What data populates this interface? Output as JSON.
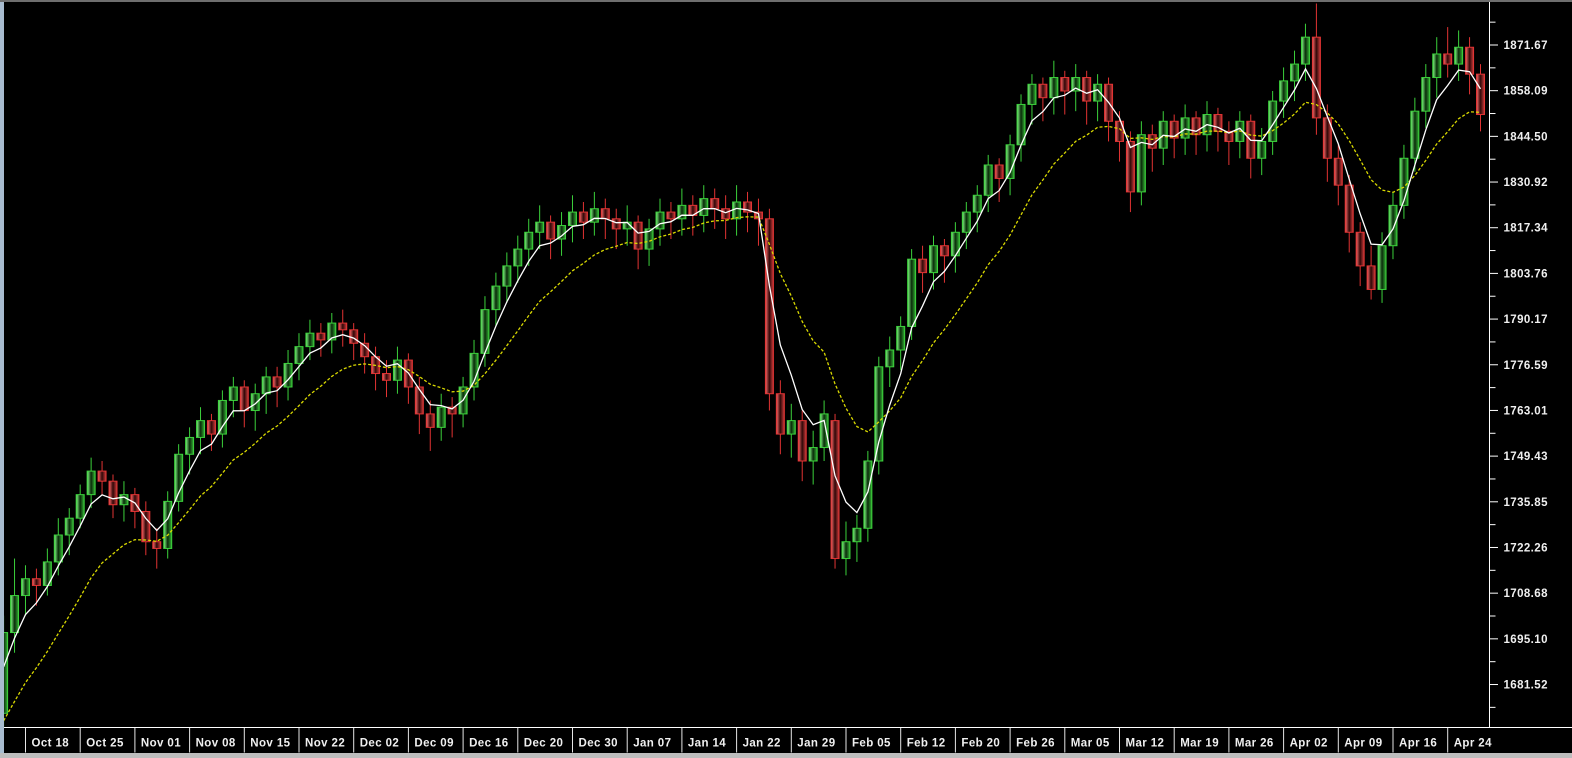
{
  "window": {
    "background": "#000000",
    "top_border_color": "#6e6e6e",
    "left_border_color": "#a8bccf",
    "bottom_border_color": "#bdbdbd",
    "axis_line_color": "#ffffff",
    "axis_text_color": "#f0f0f0"
  },
  "chart_data": {
    "type": "candlestick",
    "title": "",
    "description": "Daily OHLC candlestick price chart (black background trading terminal) with a fast white moving-average line and a slow yellow moving-average line; price scale on the right, weekly date scale on the bottom.",
    "legend_position": "none",
    "grid": false,
    "x_axis": {
      "tick_labels": [
        "Oct 18",
        "Oct 25",
        "Nov 01",
        "Nov 08",
        "Nov 15",
        "Nov 22",
        "Dec 02",
        "Dec 09",
        "Dec 16",
        "Dec 20",
        "Dec 30",
        "Jan 07",
        "Jan 14",
        "Jan 22",
        "Jan 29",
        "Feb 05",
        "Feb 12",
        "Feb 20",
        "Feb 26",
        "Mar 05",
        "Mar 12",
        "Mar 19",
        "Mar 26",
        "Apr 02",
        "Apr 09",
        "Apr 16",
        "Apr 24"
      ],
      "candles_per_tick_interval": 5
    },
    "y_axis": {
      "side": "right",
      "tick_labels": [
        "1871.67",
        "1858.09",
        "1844.50",
        "1830.92",
        "1817.34",
        "1803.76",
        "1790.17",
        "1776.59",
        "1763.01",
        "1749.43",
        "1735.85",
        "1722.26",
        "1708.68",
        "1695.10",
        "1681.52"
      ],
      "tick_values": [
        1871.67,
        1858.09,
        1844.5,
        1830.92,
        1817.34,
        1803.76,
        1790.17,
        1776.59,
        1763.01,
        1749.43,
        1735.85,
        1722.26,
        1708.68,
        1695.1,
        1681.52
      ],
      "minor_ticks_between": 1,
      "range_shown": [
        1669,
        1884
      ]
    },
    "series": [
      {
        "name": "price-candles",
        "type": "candlestick",
        "up": {
          "stroke": "#3bd13b",
          "gradient": [
            "#86ff86",
            "#0a2a0a",
            "#35b035"
          ]
        },
        "down": {
          "stroke": "#e23333",
          "gradient": [
            "#ff6a6a",
            "#2f0808",
            "#c93b3b"
          ]
        },
        "ohlc": [
          [
            1673,
            1702,
            1669,
            1697
          ],
          [
            1697,
            1719,
            1691,
            1708
          ],
          [
            1708,
            1717,
            1702,
            1713
          ],
          [
            1713,
            1716,
            1705,
            1711
          ],
          [
            1711,
            1722,
            1708,
            1718
          ],
          [
            1718,
            1731,
            1714,
            1726
          ],
          [
            1726,
            1734,
            1720,
            1731
          ],
          [
            1731,
            1741,
            1728,
            1738
          ],
          [
            1738,
            1749,
            1734,
            1745
          ],
          [
            1745,
            1748,
            1738,
            1742
          ],
          [
            1742,
            1744,
            1731,
            1735
          ],
          [
            1735,
            1742,
            1730,
            1738
          ],
          [
            1738,
            1740,
            1728,
            1733
          ],
          [
            1733,
            1736,
            1720,
            1724
          ],
          [
            1724,
            1728,
            1716,
            1722
          ],
          [
            1722,
            1739,
            1719,
            1736
          ],
          [
            1736,
            1753,
            1733,
            1750
          ],
          [
            1750,
            1758,
            1744,
            1755
          ],
          [
            1755,
            1764,
            1750,
            1760
          ],
          [
            1760,
            1762,
            1751,
            1756
          ],
          [
            1756,
            1769,
            1752,
            1766
          ],
          [
            1766,
            1773,
            1761,
            1770
          ],
          [
            1770,
            1772,
            1758,
            1763
          ],
          [
            1763,
            1771,
            1757,
            1768
          ],
          [
            1768,
            1776,
            1762,
            1773
          ],
          [
            1773,
            1776,
            1764,
            1770
          ],
          [
            1770,
            1781,
            1766,
            1777
          ],
          [
            1777,
            1786,
            1772,
            1782
          ],
          [
            1782,
            1790,
            1778,
            1786
          ],
          [
            1786,
            1789,
            1779,
            1784
          ],
          [
            1784,
            1792,
            1780,
            1789
          ],
          [
            1789,
            1793,
            1782,
            1787
          ],
          [
            1787,
            1789,
            1778,
            1783
          ],
          [
            1783,
            1786,
            1774,
            1779
          ],
          [
            1779,
            1782,
            1769,
            1774
          ],
          [
            1774,
            1778,
            1767,
            1772
          ],
          [
            1772,
            1782,
            1768,
            1778
          ],
          [
            1778,
            1780,
            1765,
            1770
          ],
          [
            1770,
            1773,
            1756,
            1762
          ],
          [
            1762,
            1766,
            1751,
            1758
          ],
          [
            1758,
            1768,
            1754,
            1764
          ],
          [
            1764,
            1767,
            1755,
            1762
          ],
          [
            1762,
            1773,
            1758,
            1770
          ],
          [
            1770,
            1784,
            1766,
            1780
          ],
          [
            1780,
            1797,
            1776,
            1793
          ],
          [
            1793,
            1804,
            1788,
            1800
          ],
          [
            1800,
            1810,
            1795,
            1806
          ],
          [
            1806,
            1815,
            1801,
            1811
          ],
          [
            1811,
            1820,
            1806,
            1816
          ],
          [
            1816,
            1824,
            1811,
            1819
          ],
          [
            1819,
            1821,
            1808,
            1814
          ],
          [
            1814,
            1822,
            1809,
            1818
          ],
          [
            1818,
            1827,
            1813,
            1822
          ],
          [
            1822,
            1825,
            1814,
            1819
          ],
          [
            1819,
            1828,
            1815,
            1823
          ],
          [
            1823,
            1826,
            1814,
            1820
          ],
          [
            1820,
            1823,
            1811,
            1817
          ],
          [
            1817,
            1824,
            1812,
            1819
          ],
          [
            1819,
            1821,
            1805,
            1811
          ],
          [
            1811,
            1820,
            1806,
            1817
          ],
          [
            1817,
            1826,
            1812,
            1822
          ],
          [
            1822,
            1825,
            1814,
            1820
          ],
          [
            1820,
            1829,
            1815,
            1824
          ],
          [
            1824,
            1827,
            1815,
            1821
          ],
          [
            1821,
            1830,
            1816,
            1826
          ],
          [
            1826,
            1829,
            1817,
            1823
          ],
          [
            1823,
            1827,
            1814,
            1820
          ],
          [
            1820,
            1830,
            1815,
            1825
          ],
          [
            1825,
            1828,
            1816,
            1822
          ],
          [
            1822,
            1826,
            1812,
            1820
          ],
          [
            1820,
            1823,
            1763,
            1768
          ],
          [
            1768,
            1772,
            1750,
            1756
          ],
          [
            1756,
            1765,
            1749,
            1760
          ],
          [
            1760,
            1763,
            1742,
            1748
          ],
          [
            1748,
            1757,
            1741,
            1752
          ],
          [
            1752,
            1766,
            1748,
            1762
          ],
          [
            1760,
            1762,
            1716,
            1719
          ],
          [
            1719,
            1730,
            1714,
            1724
          ],
          [
            1724,
            1732,
            1718,
            1728
          ],
          [
            1728,
            1751,
            1724,
            1748
          ],
          [
            1748,
            1779,
            1744,
            1776
          ],
          [
            1776,
            1785,
            1770,
            1781
          ],
          [
            1781,
            1791,
            1775,
            1788
          ],
          [
            1788,
            1811,
            1784,
            1808
          ],
          [
            1808,
            1812,
            1798,
            1804
          ],
          [
            1804,
            1815,
            1799,
            1812
          ],
          [
            1812,
            1814,
            1801,
            1809
          ],
          [
            1809,
            1819,
            1804,
            1816
          ],
          [
            1816,
            1825,
            1811,
            1822
          ],
          [
            1822,
            1830,
            1816,
            1827
          ],
          [
            1827,
            1839,
            1822,
            1836
          ],
          [
            1836,
            1838,
            1825,
            1832
          ],
          [
            1832,
            1845,
            1827,
            1842
          ],
          [
            1842,
            1857,
            1837,
            1854
          ],
          [
            1854,
            1863,
            1848,
            1860
          ],
          [
            1860,
            1862,
            1849,
            1856
          ],
          [
            1856,
            1867,
            1851,
            1862
          ],
          [
            1862,
            1864,
            1851,
            1858
          ],
          [
            1858,
            1866,
            1852,
            1862
          ],
          [
            1862,
            1864,
            1848,
            1855
          ],
          [
            1855,
            1863,
            1849,
            1860
          ],
          [
            1860,
            1862,
            1843,
            1849
          ],
          [
            1849,
            1852,
            1837,
            1843
          ],
          [
            1843,
            1846,
            1822,
            1828
          ],
          [
            1828,
            1849,
            1824,
            1845
          ],
          [
            1845,
            1848,
            1834,
            1841
          ],
          [
            1841,
            1852,
            1836,
            1849
          ],
          [
            1849,
            1851,
            1838,
            1844
          ],
          [
            1844,
            1854,
            1839,
            1850
          ],
          [
            1850,
            1852,
            1839,
            1845
          ],
          [
            1845,
            1855,
            1840,
            1851
          ],
          [
            1851,
            1853,
            1840,
            1846
          ],
          [
            1846,
            1849,
            1836,
            1843
          ],
          [
            1843,
            1852,
            1838,
            1849
          ],
          [
            1849,
            1851,
            1832,
            1838
          ],
          [
            1838,
            1847,
            1833,
            1843
          ],
          [
            1843,
            1858,
            1839,
            1855
          ],
          [
            1855,
            1865,
            1850,
            1861
          ],
          [
            1861,
            1870,
            1855,
            1866
          ],
          [
            1866,
            1878,
            1861,
            1874
          ],
          [
            1874,
            1884,
            1845,
            1850
          ],
          [
            1850,
            1854,
            1831,
            1838
          ],
          [
            1838,
            1842,
            1824,
            1830
          ],
          [
            1830,
            1833,
            1810,
            1816
          ],
          [
            1816,
            1819,
            1800,
            1806
          ],
          [
            1806,
            1812,
            1796,
            1799
          ],
          [
            1799,
            1816,
            1795,
            1812
          ],
          [
            1812,
            1828,
            1808,
            1824
          ],
          [
            1824,
            1842,
            1820,
            1838
          ],
          [
            1838,
            1856,
            1834,
            1852
          ],
          [
            1852,
            1866,
            1847,
            1862
          ],
          [
            1862,
            1874,
            1856,
            1869
          ],
          [
            1869,
            1877,
            1862,
            1866
          ],
          [
            1866,
            1876,
            1861,
            1871
          ],
          [
            1871,
            1874,
            1857,
            1863
          ],
          [
            1863,
            1866,
            1846,
            1851
          ]
        ]
      },
      {
        "name": "fast-ma",
        "type": "ema-line",
        "period": 4,
        "seed": 1680,
        "color": "#ffffff",
        "dash": ""
      },
      {
        "name": "slow-ma",
        "type": "ema-line",
        "period": 12,
        "seed": 1666,
        "color": "#d9d900",
        "dash": "3,2"
      }
    ]
  }
}
